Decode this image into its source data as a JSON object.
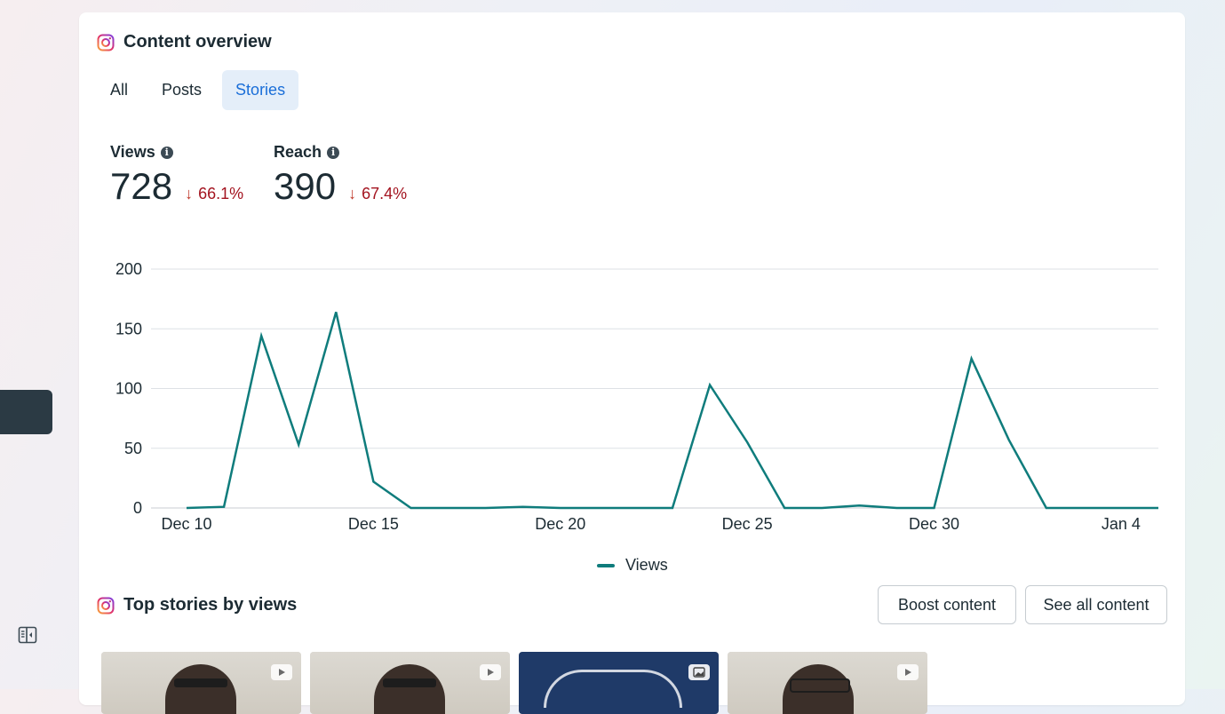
{
  "content_overview": {
    "title": "Content overview",
    "tabs": [
      {
        "label": "All",
        "active": false
      },
      {
        "label": "Posts",
        "active": false
      },
      {
        "label": "Stories",
        "active": true
      }
    ],
    "metrics": [
      {
        "label": "Views",
        "value": "728",
        "change": "66.1%",
        "direction": "down"
      },
      {
        "label": "Reach",
        "value": "390",
        "change": "67.4%",
        "direction": "down"
      }
    ]
  },
  "chart_data": {
    "type": "line",
    "x_ticks": [
      "Dec 10",
      "Dec 15",
      "Dec 20",
      "Dec 25",
      "Dec 30",
      "Jan 4"
    ],
    "x": [
      "Dec 10",
      "Dec 11",
      "Dec 12",
      "Dec 13",
      "Dec 14",
      "Dec 15",
      "Dec 16",
      "Dec 17",
      "Dec 18",
      "Dec 19",
      "Dec 20",
      "Dec 21",
      "Dec 22",
      "Dec 23",
      "Dec 24",
      "Dec 25",
      "Dec 26",
      "Dec 27",
      "Dec 28",
      "Dec 29",
      "Dec 30",
      "Dec 31",
      "Jan 1",
      "Jan 2",
      "Jan 3",
      "Jan 4",
      "Jan 5"
    ],
    "series": [
      {
        "name": "Views",
        "color": "#0f7c7c",
        "values": [
          0,
          1,
          144,
          53,
          164,
          22,
          0,
          0,
          0,
          1,
          0,
          0,
          0,
          0,
          103,
          55,
          0,
          0,
          2,
          0,
          0,
          125,
          57,
          0,
          0,
          0,
          0
        ]
      }
    ],
    "y_ticks": [
      0,
      50,
      100,
      150,
      200
    ],
    "ylim": [
      0,
      200
    ],
    "grid": true,
    "legend": "bottom-center"
  },
  "top_stories": {
    "title": "Top stories by views",
    "boost_label": "Boost content",
    "see_all_label": "See all content",
    "thumbnails": [
      {
        "type": "video-icon"
      },
      {
        "type": "video-icon"
      },
      {
        "type": "image-icon"
      },
      {
        "type": "video-icon"
      }
    ]
  },
  "colors": {
    "accent": "#1a6ed8",
    "negative": "#a3131f",
    "series": "#0f7c7c"
  }
}
